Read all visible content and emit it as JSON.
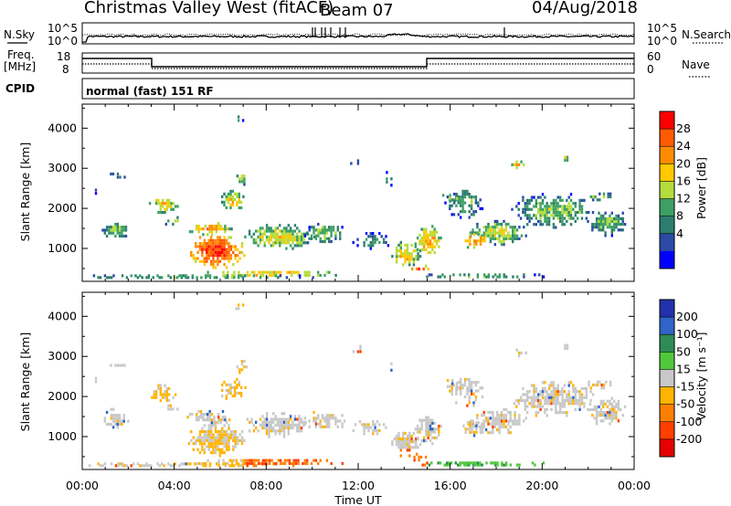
{
  "header": {
    "station": "Christmas Valley West (fitACF)",
    "beam": "Beam 07",
    "date": "04/Aug/2018"
  },
  "panels": {
    "nsky_label": "N.Sky",
    "nsearch_label": "N.Search",
    "noise_ticks": [
      "10^5",
      "10^0"
    ],
    "freq_label_line1": "Freq.",
    "freq_label_line2": "[MHz]",
    "freq_ticks": [
      "18",
      "8"
    ],
    "nave_label": "Nave",
    "nave_ticks": [
      "60",
      "0"
    ],
    "cpid_label": "CPID",
    "cpid_value": "normal (fast) 151 RF"
  },
  "chart_data": [
    {
      "type": "heatmap",
      "name": "power",
      "xlabel": "",
      "ylabel": "Slant Range [km]",
      "xlim": [
        0,
        24
      ],
      "ylim": [
        180,
        4600
      ],
      "yticks": [
        "1000",
        "2000",
        "3000",
        "4000"
      ],
      "colorbar_label": "Power [dB]",
      "colorbar_ticks": [
        "28",
        "24",
        "20",
        "16",
        "12",
        "8",
        "4"
      ],
      "colorbar_colors": [
        "#ff0000",
        "#ff5a00",
        "#ff8c00",
        "#ffc800",
        "#b4dc3c",
        "#3c9f64",
        "#2d7d6e",
        "#2a4aa6",
        "#0000ff"
      ]
    },
    {
      "type": "heatmap",
      "name": "velocity",
      "xlabel": "Time UT",
      "ylabel": "Slant Range [km]",
      "xlim": [
        0,
        24
      ],
      "ylim": [
        180,
        4600
      ],
      "xticks": [
        "00:00",
        "04:00",
        "08:00",
        "12:00",
        "16:00",
        "20:00",
        "00:00"
      ],
      "yticks": [
        "1000",
        "2000",
        "3000",
        "4000"
      ],
      "colorbar_label": "Velocity [m s⁻¹]",
      "colorbar_ticks": [
        "200",
        "100",
        "50",
        "15",
        "-15",
        "-50",
        "-100",
        "-200"
      ],
      "colorbar_colors": [
        "#2332aa",
        "#2f64c8",
        "#2e8b57",
        "#50c83c",
        "#c8c8c8",
        "#ffb400",
        "#ff8000",
        "#ff4000",
        "#e60000"
      ]
    }
  ]
}
